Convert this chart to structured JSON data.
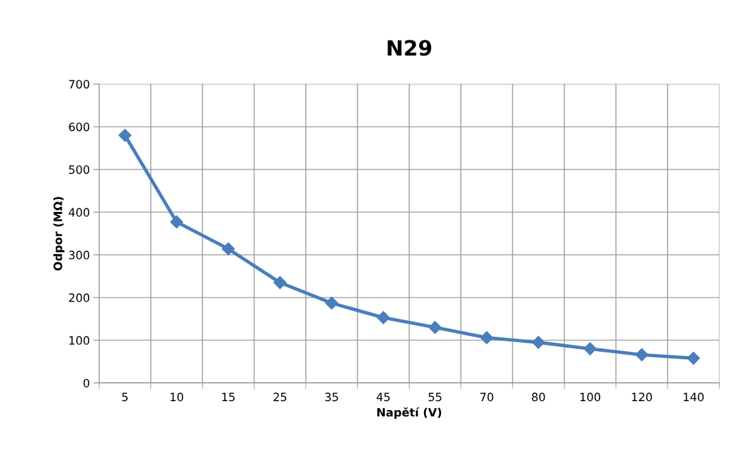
{
  "chart_data": {
    "type": "line",
    "title": "N29",
    "xlabel": "Napětí (V)",
    "ylabel": "Odpor (MΩ)",
    "categories": [
      "5",
      "10",
      "15",
      "25",
      "35",
      "45",
      "55",
      "70",
      "80",
      "100",
      "120",
      "140"
    ],
    "series": [
      {
        "color": "#4a7ebb",
        "values": [
          580,
          377,
          314,
          235,
          187,
          153,
          130,
          106,
          95,
          80,
          66,
          58
        ]
      }
    ],
    "ylim": [
      0,
      700
    ],
    "yticks": [
      0,
      100,
      200,
      300,
      400,
      500,
      600,
      700
    ],
    "grid": true,
    "marker": "diamond",
    "line_style": "solid",
    "legend": false
  }
}
